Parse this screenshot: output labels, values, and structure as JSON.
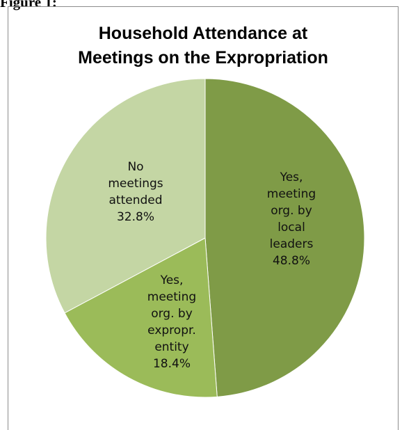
{
  "figure_label": "Figure 1:",
  "chart_data": {
    "type": "pie",
    "title_lines": [
      "Household Attendance at",
      "Meetings on the Expropriation"
    ],
    "slices": [
      {
        "lines": [
          "Yes,",
          "meeting",
          "org. by",
          "local",
          "leaders",
          "48.8%"
        ],
        "value": 48.8,
        "color": "#7f9b47"
      },
      {
        "lines": [
          "Yes,",
          "meeting",
          "org. by",
          "expropr.",
          "entity",
          "18.4%"
        ],
        "value": 18.4,
        "color": "#9bbb59"
      },
      {
        "lines": [
          "No",
          "meetings",
          "attended",
          "32.8%"
        ],
        "value": 32.8,
        "color": "#c4d6a4"
      }
    ],
    "start_angle_deg": 0,
    "direction": "clockwise"
  }
}
